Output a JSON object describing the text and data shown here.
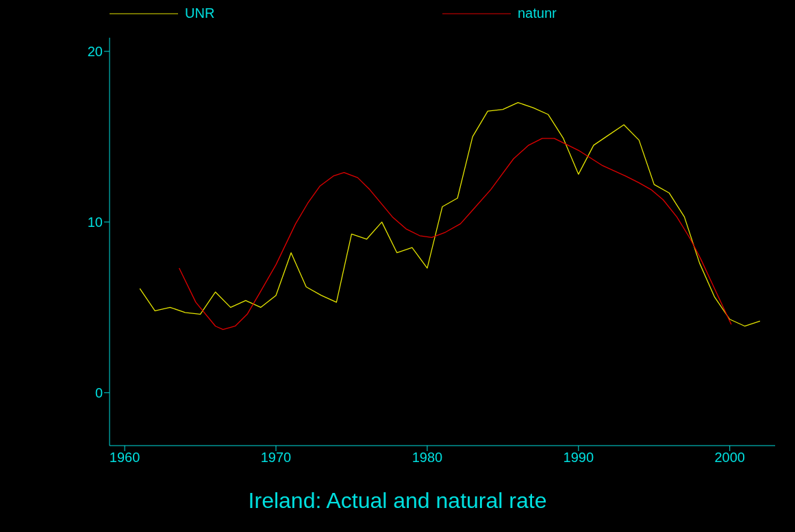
{
  "chart_data": {
    "type": "line",
    "title": "Ireland: Actual and natural rate",
    "legend": "top",
    "grid": false,
    "marker": "none",
    "xlim": [
      1959,
      2003
    ],
    "xticks": [
      1960,
      1970,
      1980,
      1990,
      2000
    ],
    "ylim": [
      -3.1,
      20.8
    ],
    "yticks": [
      0,
      10,
      20
    ],
    "series": [
      {
        "name": "UNR",
        "color": "#e6e600",
        "x": [
          1961,
          1962,
          1963,
          1964,
          1965,
          1966,
          1967,
          1968,
          1969,
          1970,
          1971,
          1972,
          1973,
          1974,
          1975,
          1976,
          1977,
          1978,
          1979,
          1980,
          1981,
          1982,
          1983,
          1984,
          1985,
          1986,
          1987,
          1988,
          1989,
          1990,
          1991,
          1992,
          1993,
          1994,
          1995,
          1996,
          1997,
          1998,
          1999,
          2000,
          2001,
          2002
        ],
        "values": [
          6.1,
          4.8,
          5.0,
          4.7,
          4.6,
          5.9,
          5.0,
          5.4,
          5.0,
          5.7,
          8.2,
          6.2,
          5.7,
          5.3,
          9.3,
          9.0,
          10.0,
          8.2,
          8.5,
          7.3,
          10.9,
          11.4,
          15.0,
          16.5,
          16.6,
          17.0,
          16.7,
          16.3,
          14.9,
          12.8,
          14.5,
          15.1,
          15.7,
          14.8,
          12.2,
          11.7,
          10.3,
          7.6,
          5.6,
          4.3,
          3.9,
          4.2
        ]
      },
      {
        "name": "natunr",
        "color": "#e00000",
        "x": [
          1963.6,
          1964.7,
          1966.0,
          1966.5,
          1967.3,
          1968.1,
          1968.9,
          1970.0,
          1971.3,
          1972.1,
          1972.9,
          1973.8,
          1974.5,
          1975.4,
          1976.2,
          1977.7,
          1978.6,
          1979.5,
          1980.3,
          1981.2,
          1982.2,
          1983.0,
          1984.2,
          1985.7,
          1986.7,
          1987.6,
          1988.4,
          1990.0,
          1991.6,
          1993.1,
          1994.0,
          1994.8,
          1995.6,
          1996.5,
          1997.4,
          1998.1,
          1999.1,
          2000.1
        ],
        "values": [
          7.3,
          5.3,
          3.9,
          3.7,
          3.9,
          4.6,
          5.8,
          7.5,
          9.9,
          11.1,
          12.1,
          12.7,
          12.9,
          12.6,
          11.9,
          10.3,
          9.6,
          9.2,
          9.1,
          9.4,
          9.9,
          10.7,
          11.9,
          13.7,
          14.5,
          14.9,
          14.9,
          14.2,
          13.3,
          12.7,
          12.3,
          11.9,
          11.3,
          10.3,
          9.0,
          7.8,
          5.9,
          4.0
        ]
      }
    ]
  }
}
